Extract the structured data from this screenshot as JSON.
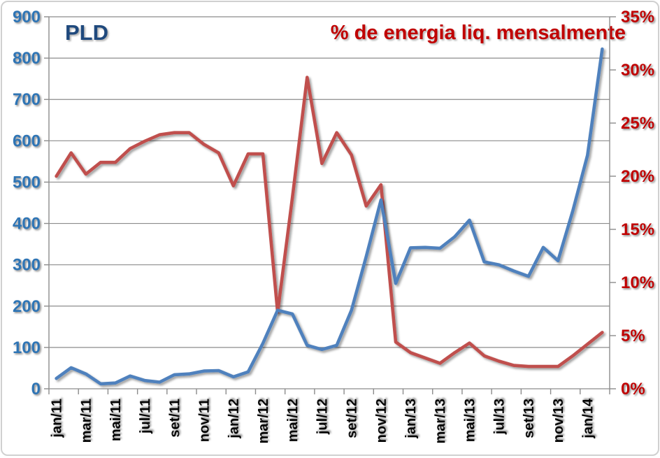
{
  "chart_data": {
    "type": "line",
    "titles": {
      "left_series_title": "PLD",
      "right_series_title": "% de energia liq. mensalmente"
    },
    "x": [
      "jan/11",
      "fev/11",
      "mar/11",
      "abr/11",
      "mai/11",
      "jun/11",
      "jul/11",
      "ago/11",
      "set/11",
      "out/11",
      "nov/11",
      "dez/11",
      "jan/12",
      "fev/12",
      "mar/12",
      "abr/12",
      "mai/12",
      "jun/12",
      "jul/12",
      "ago/12",
      "set/12",
      "out/12",
      "nov/12",
      "dez/12",
      "jan/13",
      "fev/13",
      "mar/13",
      "abr/13",
      "mai/13",
      "jun/13",
      "jul/13",
      "ago/13",
      "set/13",
      "out/13",
      "nov/13",
      "dez/13",
      "jan/14",
      "fev/14"
    ],
    "x_labels_shown": [
      "jan/11",
      "mar/11",
      "mai/11",
      "jul/11",
      "set/11",
      "nov/11",
      "jan/12",
      "mar/12",
      "mai/12",
      "jul/12",
      "set/12",
      "nov/12",
      "jan/13",
      "mar/13",
      "mai/13",
      "jul/13",
      "set/13",
      "nov/13",
      "jan/14"
    ],
    "label_every": 2,
    "series": [
      {
        "name": "PLD",
        "axis": "left",
        "color": "#4F81BD",
        "values": [
          25,
          51,
          36,
          12,
          14,
          31,
          20,
          16,
          34,
          36,
          43,
          44,
          29,
          41,
          110,
          190,
          181,
          105,
          95,
          105,
          190,
          320,
          457,
          255,
          341,
          342,
          340,
          368,
          408,
          307,
          300,
          285,
          272,
          342,
          310,
          430,
          565,
          822
        ]
      },
      {
        "name": "% de energia liq. mensalmente",
        "axis": "right",
        "color": "#C0504D",
        "values": [
          20.0,
          22.2,
          20.2,
          21.3,
          21.3,
          22.6,
          23.3,
          23.9,
          24.1,
          24.1,
          23.0,
          22.2,
          19.1,
          22.1,
          22.1,
          7.2,
          18.0,
          29.3,
          21.2,
          24.1,
          22.0,
          17.2,
          19.2,
          4.4,
          3.4,
          2.9,
          2.4,
          3.4,
          4.3,
          3.1,
          2.6,
          2.2,
          2.1,
          2.1,
          2.1,
          3.1,
          4.2,
          5.3
        ]
      }
    ],
    "left_axis": {
      "min": 0,
      "max": 900,
      "step": 100,
      "tick_labels": [
        "0",
        "100",
        "200",
        "300",
        "400",
        "500",
        "600",
        "700",
        "800",
        "900"
      ],
      "color": "#2E74B5"
    },
    "right_axis": {
      "min": 0,
      "max": 35,
      "step": 5,
      "suffix": "%",
      "tick_labels": [
        "0%",
        "5%",
        "10%",
        "15%",
        "20%",
        "25%",
        "30%",
        "35%"
      ],
      "color": "#C00000"
    },
    "x_axis_label_color": "#000000",
    "gridline_color": "#8c8c8c",
    "grid_on": true,
    "legend_position": "none (titles drawn inside plot)"
  }
}
